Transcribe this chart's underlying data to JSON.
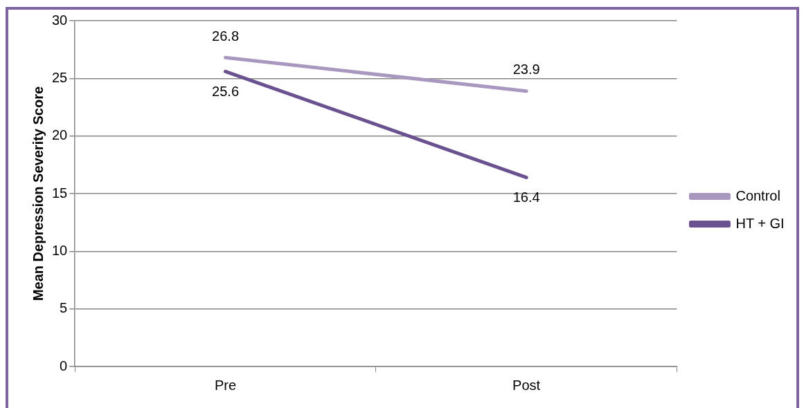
{
  "chart_data": {
    "type": "line",
    "ylabel": "Mean Depression Severity Score",
    "categories": [
      "Pre",
      "Post"
    ],
    "series": [
      {
        "name": "Control",
        "color": "#a898c0",
        "values": [
          26.8,
          23.9
        ]
      },
      {
        "name": "HT + GI",
        "color": "#6a5290",
        "values": [
          25.6,
          16.4
        ]
      }
    ],
    "ylim": [
      0,
      30
    ],
    "yticks": [
      0,
      5,
      10,
      15,
      20,
      25,
      30
    ],
    "grid": "y",
    "legend": "right",
    "marker": "none",
    "line_style": "solid",
    "data_labels": true
  }
}
